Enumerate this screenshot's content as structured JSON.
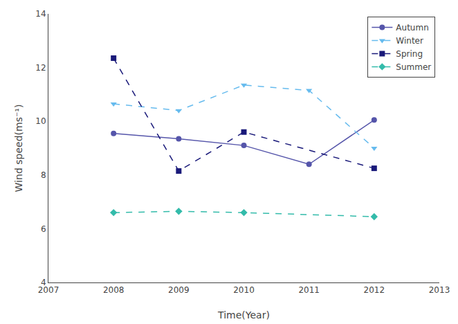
{
  "chart_data": {
    "type": "line",
    "x": [
      2008,
      2009,
      2010,
      2011,
      2012
    ],
    "xlabel": "Time(Year)",
    "ylabel": "Wind speed(ms⁻¹)",
    "xlim": [
      2007,
      2013
    ],
    "ylim": [
      4,
      14
    ],
    "xticks": [
      2007,
      2008,
      2009,
      2010,
      2011,
      2012,
      2013
    ],
    "yticks": [
      4,
      6,
      8,
      10,
      12,
      14
    ],
    "grid": false,
    "legend": "upper right",
    "series": [
      {
        "name": "Autumn",
        "color": "#5555aa",
        "marker": "circle",
        "line_style": "solid",
        "values": [
          9.55,
          9.35,
          9.1,
          8.4,
          10.05
        ]
      },
      {
        "name": "Winter",
        "color": "#66bbee",
        "marker": "triangle-down",
        "line_style": "dash",
        "values": [
          10.65,
          10.4,
          11.35,
          11.15,
          9.0
        ]
      },
      {
        "name": "Spring",
        "color": "#1a1a7a",
        "marker": "square",
        "line_style": "dash",
        "values": [
          12.35,
          8.15,
          9.6,
          null,
          8.25
        ]
      },
      {
        "name": "Summer",
        "color": "#33bbaa",
        "marker": "diamond",
        "line_style": "dash",
        "values": [
          6.6,
          6.65,
          6.6,
          null,
          6.45
        ]
      }
    ]
  }
}
